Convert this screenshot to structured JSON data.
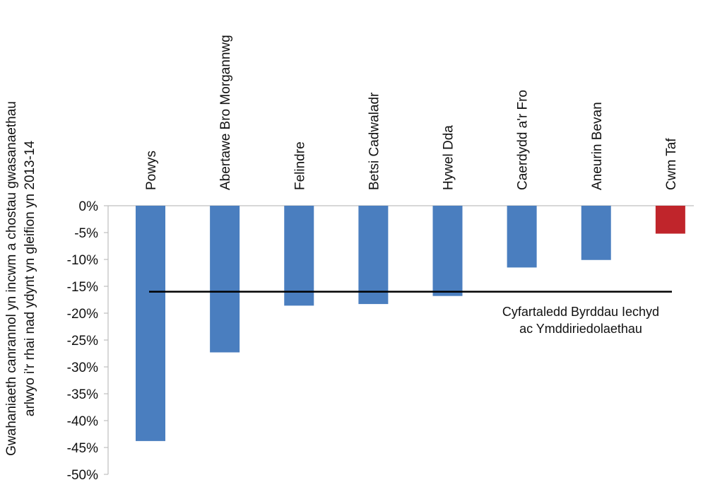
{
  "chart_data": {
    "type": "bar",
    "ylabel": [
      "Gwahaniaeth canrannol yn incwm a chostau gwasanaethau",
      "arlwyo i'r rhai nad ydynt yn gleifion yn 2013-14"
    ],
    "categories": [
      "Powys",
      "Abertawe Bro Morgannwg",
      "Felindre",
      "Betsi Cadwaladr",
      "Hywel Dda",
      "Caerdydd a'r Fro",
      "Aneurin Bevan",
      "Cwm Taf"
    ],
    "values": [
      -43.8,
      -27.3,
      -18.6,
      -18.3,
      -16.8,
      -11.5,
      -10.1,
      -5.2
    ],
    "colors": [
      "#4a7ebf",
      "#4a7ebf",
      "#4a7ebf",
      "#4a7ebf",
      "#4a7ebf",
      "#4a7ebf",
      "#4a7ebf",
      "#c0252b"
    ],
    "ylim": [
      -50,
      0
    ],
    "yticks": [
      0,
      -5,
      -10,
      -15,
      -20,
      -25,
      -30,
      -35,
      -40,
      -45,
      -50
    ],
    "ytick_labels": [
      "0%",
      "-5%",
      "-10%",
      "-15%",
      "-20%",
      "-25%",
      "-30%",
      "-35%",
      "-40%",
      "-45%",
      "-50%"
    ],
    "reference_line": {
      "value": -16,
      "label": [
        "Cyfartaledd Byrddau Iechyd",
        "ac Ymddiriedolaethau"
      ]
    },
    "grid": false,
    "legend": "none"
  }
}
